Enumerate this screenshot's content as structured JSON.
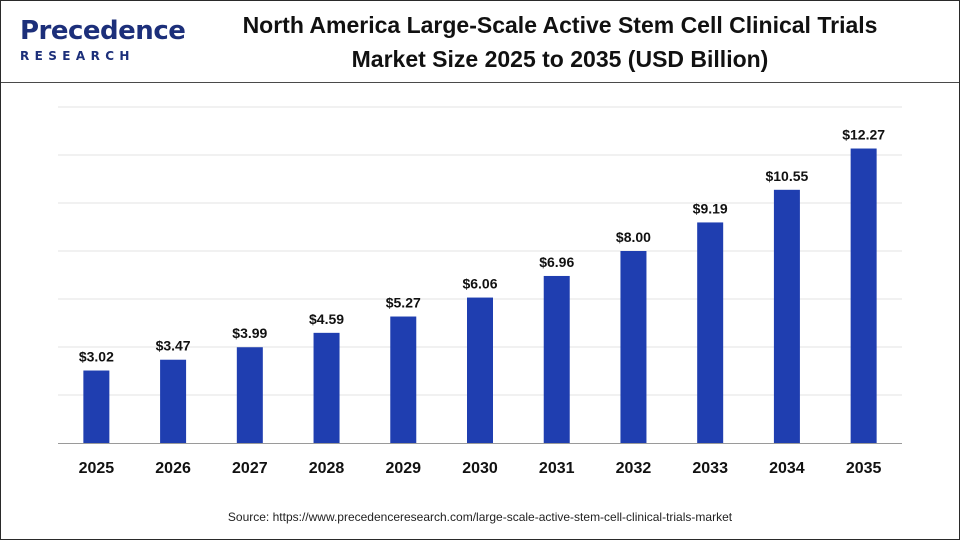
{
  "brand": {
    "logo_main": "Precedence",
    "logo_sub": "RESEARCH"
  },
  "header": {
    "title_line1": "North America Large-Scale Active Stem Cell Clinical Trials",
    "title_line2": "Market Size 2025 to 2035 (USD Billion)"
  },
  "colors": {
    "bar": "#1f3eb0",
    "grid": "#e3e3e3",
    "axis": "#9a9a9a",
    "text": "#111111",
    "brand": "#1c2f7a"
  },
  "chart_data": {
    "type": "bar",
    "categories": [
      "2025",
      "2026",
      "2027",
      "2028",
      "2029",
      "2030",
      "2031",
      "2032",
      "2033",
      "2034",
      "2035"
    ],
    "values": [
      3.02,
      3.47,
      3.99,
      4.59,
      5.27,
      6.06,
      6.96,
      8.0,
      9.19,
      10.55,
      12.27
    ],
    "data_labels": [
      "$3.02",
      "$3.47",
      "$3.99",
      "$4.59",
      "$5.27",
      "$6.06",
      "$6.96",
      "$8.00",
      "$9.19",
      "$10.55",
      "$12.27"
    ],
    "title": "North America Large-Scale Active Stem Cell Clinical Trials Market Size 2025 to 2035 (USD Billion)",
    "xlabel": "",
    "ylabel": "",
    "ylim": [
      0,
      14
    ],
    "grid": true,
    "legend": "none"
  },
  "footer": {
    "source": "Source: https://www.precedenceresearch.com/large-scale-active-stem-cell-clinical-trials-market"
  }
}
